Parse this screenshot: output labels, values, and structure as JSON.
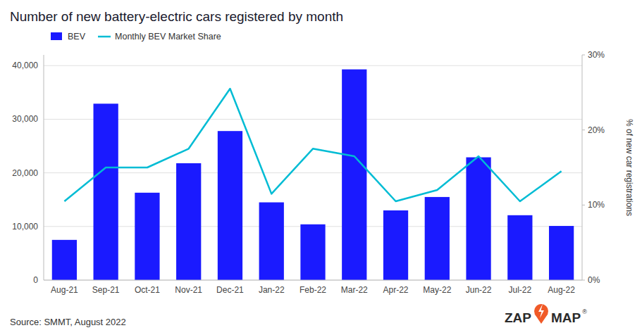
{
  "chart_data": {
    "type": "bar",
    "title": "Number of new battery-electric cars registered by month",
    "y2label": "% of new car registrations",
    "categories": [
      "Aug-21",
      "Sep-21",
      "Oct-21",
      "Nov-21",
      "Dec-21",
      "Jan-22",
      "Feb-22",
      "Mar-22",
      "Apr-22",
      "May-22",
      "Jun-22",
      "Jul-22",
      "Aug-22"
    ],
    "series": [
      {
        "name": "BEV",
        "type": "bar",
        "color": "#1a1aff",
        "values": [
          7500,
          32900,
          16300,
          21800,
          27800,
          14500,
          10400,
          39300,
          13000,
          15500,
          22900,
          12100,
          10100
        ]
      },
      {
        "name": "Monthly BEV Market Share",
        "type": "line",
        "color": "#00bcd4",
        "axis": "y2",
        "values": [
          10.5,
          15.0,
          15.0,
          17.5,
          25.5,
          11.5,
          17.5,
          16.5,
          10.5,
          12.0,
          16.5,
          10.5,
          14.5
        ]
      }
    ],
    "ylim": [
      0,
      42000
    ],
    "yticks": [
      0,
      {
        "value": 10000,
        "label": "10,000"
      },
      {
        "value": 20000,
        "label": "20,000"
      },
      {
        "value": 30000,
        "label": "30,000"
      },
      {
        "value": 40000,
        "label": "40,000"
      }
    ],
    "y2lim": [
      0,
      30
    ],
    "y2ticks": [
      {
        "value": 0,
        "label": "0%"
      },
      {
        "value": 10,
        "label": "10%"
      },
      {
        "value": 20,
        "label": "20%"
      },
      {
        "value": 30,
        "label": "30%"
      }
    ],
    "grid": true,
    "legend": "top-left",
    "annotations": [
      "Source: SMMT, August 2022",
      "ZAP",
      "MAP",
      "®"
    ]
  }
}
